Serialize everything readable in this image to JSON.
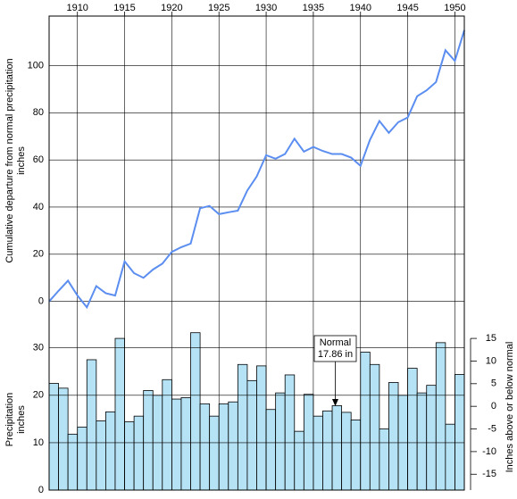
{
  "chart_data": [
    {
      "type": "line",
      "ylabel": [
        "Cumulative departure from normal precipitation",
        "inches"
      ],
      "x": [
        1907,
        1908,
        1909,
        1910,
        1911,
        1912,
        1913,
        1914,
        1915,
        1916,
        1917,
        1918,
        1919,
        1920,
        1921,
        1922,
        1923,
        1924,
        1925,
        1926,
        1927,
        1928,
        1929,
        1930,
        1931,
        1932,
        1933,
        1934,
        1935,
        1936,
        1937,
        1938,
        1939,
        1940,
        1941,
        1942,
        1943,
        1944,
        1945,
        1946,
        1947,
        1948,
        1949,
        1950,
        1951
      ],
      "values": [
        0,
        4.5,
        8.8,
        2.5,
        -2.5,
        6.5,
        3.5,
        2.5,
        17,
        12,
        10,
        13.5,
        16,
        21,
        23,
        24.5,
        39.5,
        40.5,
        37,
        37.8,
        38.5,
        47,
        53,
        62,
        60.5,
        62.5,
        69,
        63.5,
        65.5,
        63.8,
        62.5,
        62.5,
        61,
        57.5,
        68.5,
        76.5,
        71.5,
        76,
        78,
        87,
        89.5,
        93,
        106.5,
        102,
        115
      ],
      "color": "#5b8ef0",
      "xlim": [
        1907,
        1951
      ],
      "xticks": [
        1910,
        1915,
        1920,
        1925,
        1930,
        1935,
        1940,
        1945,
        1950
      ],
      "ylim": [
        -80,
        121
      ],
      "yticks": [
        0,
        20,
        40,
        60,
        80,
        100
      ],
      "grid": true
    },
    {
      "type": "bar",
      "ylabel": [
        "Precipitation",
        "inches"
      ],
      "y2label": "Inches above or below normal",
      "annotation": [
        "Normal",
        "17.86 in"
      ],
      "x": [
        1907,
        1908,
        1909,
        1910,
        1911,
        1912,
        1913,
        1914,
        1915,
        1916,
        1917,
        1918,
        1919,
        1920,
        1921,
        1922,
        1923,
        1924,
        1925,
        1926,
        1927,
        1928,
        1929,
        1930,
        1931,
        1932,
        1933,
        1934,
        1935,
        1936,
        1937,
        1938,
        1939,
        1940,
        1941,
        1942,
        1943,
        1944,
        1945,
        1946,
        1947,
        1948,
        1949,
        1950
      ],
      "values": [
        22.5,
        21.5,
        11.8,
        13.3,
        27.5,
        14.6,
        16.5,
        32,
        14.4,
        15.6,
        21,
        20,
        23.3,
        19.2,
        19.5,
        33.2,
        18.2,
        15.6,
        18.2,
        18.6,
        26.5,
        23.1,
        26.2,
        17,
        20.5,
        24.3,
        12.4,
        20.2,
        15.6,
        16.7,
        17.8,
        16.4,
        14.8,
        29.1,
        26.5,
        12.9,
        22.7,
        20,
        25.7,
        20.5,
        22.1,
        31.1,
        13.9,
        24.4
      ],
      "color": "#b5e3f5",
      "xlim": [
        1907,
        1951
      ],
      "ylim": [
        0,
        100
      ],
      "yticks": [
        0,
        10,
        20,
        30
      ],
      "grid": true,
      "y2lim": [
        -18.5,
        86.2
      ],
      "y2ticks": [
        -15,
        -10,
        -5,
        0,
        5,
        10,
        15
      ]
    }
  ]
}
